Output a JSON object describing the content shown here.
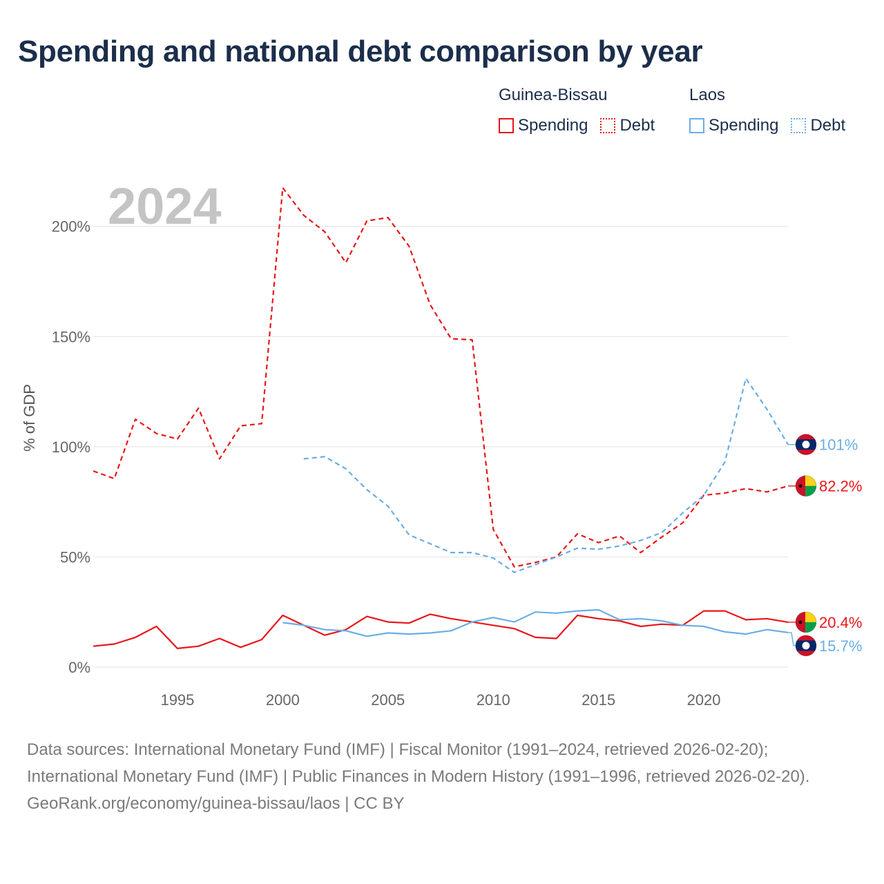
{
  "title": "Spending and national debt comparison by year",
  "legend": {
    "guinea_bissau": {
      "name": "Guinea-Bissau",
      "spending_label": "Spending",
      "debt_label": "Debt"
    },
    "laos": {
      "name": "Laos",
      "spending_label": "Spending",
      "debt_label": "Debt"
    }
  },
  "colors": {
    "guinea_bissau": "#e8161b",
    "laos": "#6aaee6",
    "grid": "#e6e6e6",
    "watermark": "#c4c4c4"
  },
  "chart_data": {
    "type": "line",
    "title": "Spending and national debt comparison by year",
    "current_year_label": "2024",
    "ylabel": "% of GDP",
    "xlabel": "",
    "xlim": [
      1991,
      2024
    ],
    "ylim": [
      0,
      220
    ],
    "x_ticks": [
      1995,
      2000,
      2005,
      2010,
      2015,
      2020
    ],
    "y_ticks": [
      0,
      50,
      100,
      150,
      200
    ],
    "y_tick_labels": [
      "0%",
      "50%",
      "100%",
      "150%",
      "200%"
    ],
    "series": [
      {
        "name": "Guinea-Bissau Debt",
        "country": "guinea_bissau",
        "style": "dashed",
        "x": [
          1991,
          1992,
          1993,
          1994,
          1995,
          1996,
          1997,
          1998,
          1999,
          2000,
          2001,
          2002,
          2003,
          2004,
          2005,
          2006,
          2007,
          2008,
          2009,
          2010,
          2011,
          2012,
          2013,
          2014,
          2015,
          2016,
          2017,
          2018,
          2019,
          2020,
          2021,
          2022,
          2023,
          2024
        ],
        "values": [
          89,
          85.5,
          112.5,
          106,
          103.5,
          117.5,
          94.5,
          109.5,
          110.5,
          217.5,
          205,
          197.5,
          183.5,
          202.5,
          204,
          191,
          164.5,
          149,
          148.5,
          62.5,
          45.5,
          47.5,
          50,
          60.5,
          56.5,
          59.5,
          52,
          59,
          65.5,
          78,
          79,
          81,
          79.5,
          82.2
        ],
        "end_label": "82.2%"
      },
      {
        "name": "Laos Debt",
        "country": "laos",
        "style": "dashed",
        "x": [
          2001,
          2002,
          2003,
          2004,
          2005,
          2006,
          2007,
          2008,
          2009,
          2010,
          2011,
          2012,
          2013,
          2014,
          2015,
          2016,
          2017,
          2018,
          2019,
          2020,
          2021,
          2022,
          2023,
          2024
        ],
        "values": [
          94.5,
          95.5,
          90,
          80.5,
          73,
          60,
          56,
          52,
          52,
          49.5,
          43,
          46.5,
          50,
          54,
          53.5,
          55,
          57.5,
          61,
          70,
          78,
          93,
          131,
          117,
          101
        ],
        "end_label": "101%"
      },
      {
        "name": "Guinea-Bissau Spending",
        "country": "guinea_bissau",
        "style": "solid",
        "x": [
          1991,
          1992,
          1993,
          1994,
          1995,
          1996,
          1997,
          1998,
          1999,
          2000,
          2001,
          2002,
          2003,
          2004,
          2005,
          2006,
          2007,
          2008,
          2009,
          2010,
          2011,
          2012,
          2013,
          2014,
          2015,
          2016,
          2017,
          2018,
          2019,
          2020,
          2021,
          2022,
          2023,
          2024
        ],
        "values": [
          9.5,
          10.5,
          13.5,
          18.5,
          8.5,
          9.5,
          13,
          9,
          12.5,
          23.5,
          19,
          14.5,
          17,
          23,
          20.5,
          20,
          24,
          22,
          20.5,
          19,
          17.5,
          13.5,
          13,
          23.5,
          22,
          21,
          18.5,
          19.5,
          19,
          25.5,
          25.5,
          21.5,
          22,
          20.4
        ],
        "end_label": "20.4%"
      },
      {
        "name": "Laos Spending",
        "country": "laos",
        "style": "solid",
        "x": [
          2000,
          2001,
          2002,
          2003,
          2004,
          2005,
          2006,
          2007,
          2008,
          2009,
          2010,
          2011,
          2012,
          2013,
          2014,
          2015,
          2016,
          2017,
          2018,
          2019,
          2020,
          2021,
          2022,
          2023,
          2024
        ],
        "values": [
          20.2,
          19,
          17,
          16.5,
          14,
          15.5,
          15,
          15.5,
          16.5,
          20.5,
          22.5,
          20.5,
          25,
          24.5,
          25.5,
          26,
          21.5,
          22,
          21,
          19,
          18.5,
          16,
          15,
          17,
          15.7
        ],
        "end_label": "15.7%"
      }
    ]
  },
  "footer": {
    "sources": "Data sources: International Monetary Fund (IMF) | Fiscal Monitor (1991–2024, retrieved 2026-02-20); International Monetary Fund (IMF) | Public Finances in Modern History (1991–1996, retrieved 2026-02-20).",
    "credit": "GeoRank.org/economy/guinea-bissau/laos | CC BY"
  }
}
